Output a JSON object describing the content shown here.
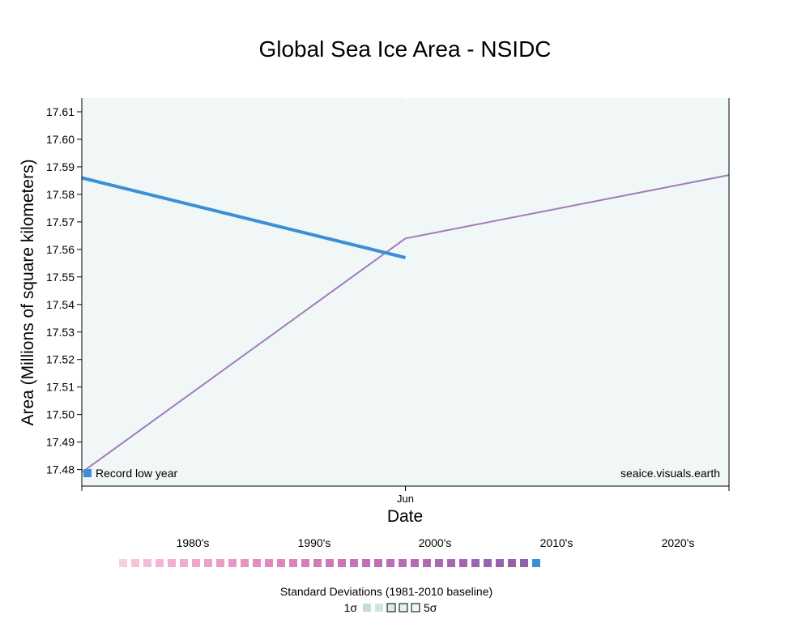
{
  "chart_data": {
    "type": "line",
    "title": "Global Sea Ice Area - NSIDC",
    "xlabel": "Date",
    "ylabel": "Area (Millions of square kilometers)",
    "x_tick_labels": [
      "Jun"
    ],
    "y_ticks": [
      17.48,
      17.49,
      17.5,
      17.51,
      17.52,
      17.53,
      17.54,
      17.55,
      17.56,
      17.57,
      17.58,
      17.59,
      17.6,
      17.61
    ],
    "y_tick_labels": [
      "17.48",
      "17.49",
      "17.50",
      "17.51",
      "17.52",
      "17.53",
      "17.54",
      "17.55",
      "17.56",
      "17.57",
      "17.58",
      "17.59",
      "17.60",
      "17.61"
    ],
    "ylim": [
      17.474,
      17.615
    ],
    "grid": false,
    "series": [
      {
        "role": "record-low",
        "color": "#a07cb8",
        "points": [
          [
            "May 31",
            17.479
          ],
          [
            "Jun 1",
            17.564
          ],
          [
            "Jun 2",
            17.587
          ]
        ]
      },
      {
        "role": "current",
        "color": "#3a8fd6",
        "points": [
          [
            "May 31",
            17.586
          ],
          [
            "Jun 1",
            17.557
          ]
        ]
      }
    ],
    "legend": {
      "record_low_label": "Record low year",
      "record_low_marker_color": "#3a8fd6",
      "placement": "bottom-left"
    },
    "watermark": "seaice.visuals.earth",
    "decades": {
      "labels": [
        "1980's",
        "1990's",
        "2000's",
        "2010's",
        "2020's"
      ],
      "swatches": [
        "#f7cfe0",
        "#f5c2da",
        "#f4bad6",
        "#f3b5d3",
        "#f2b0d0",
        "#f1abcd",
        "#f0a6ca",
        "#eea2c8",
        "#eb9dc6",
        "#e898c4",
        "#e593c2",
        "#e28ec0",
        "#df8abe",
        "#dc86bd",
        "#d983bc",
        "#d57fbb",
        "#d17cba",
        "#cd79b9",
        "#c977b8",
        "#c574b7",
        "#c172b6",
        "#bd70b5",
        "#b96fb4",
        "#b56db3",
        "#b16cb2",
        "#ad6ab1",
        "#a969b0",
        "#a568af",
        "#a166ae",
        "#9d65ad",
        "#9964ac",
        "#9563ab",
        "#9162aa",
        "#8e61a9",
        "#3a8fd6"
      ]
    },
    "std_legend": {
      "caption": "Standard Deviations (1981-2010 baseline)",
      "low_label": "1σ",
      "high_label": "5σ",
      "swatches": [
        "#c5dcd8",
        "#cfe5e2",
        "#d8ecea",
        "#e2f2f0",
        "#ecf7f6"
      ]
    },
    "plot_background": "#f1f7f7"
  }
}
